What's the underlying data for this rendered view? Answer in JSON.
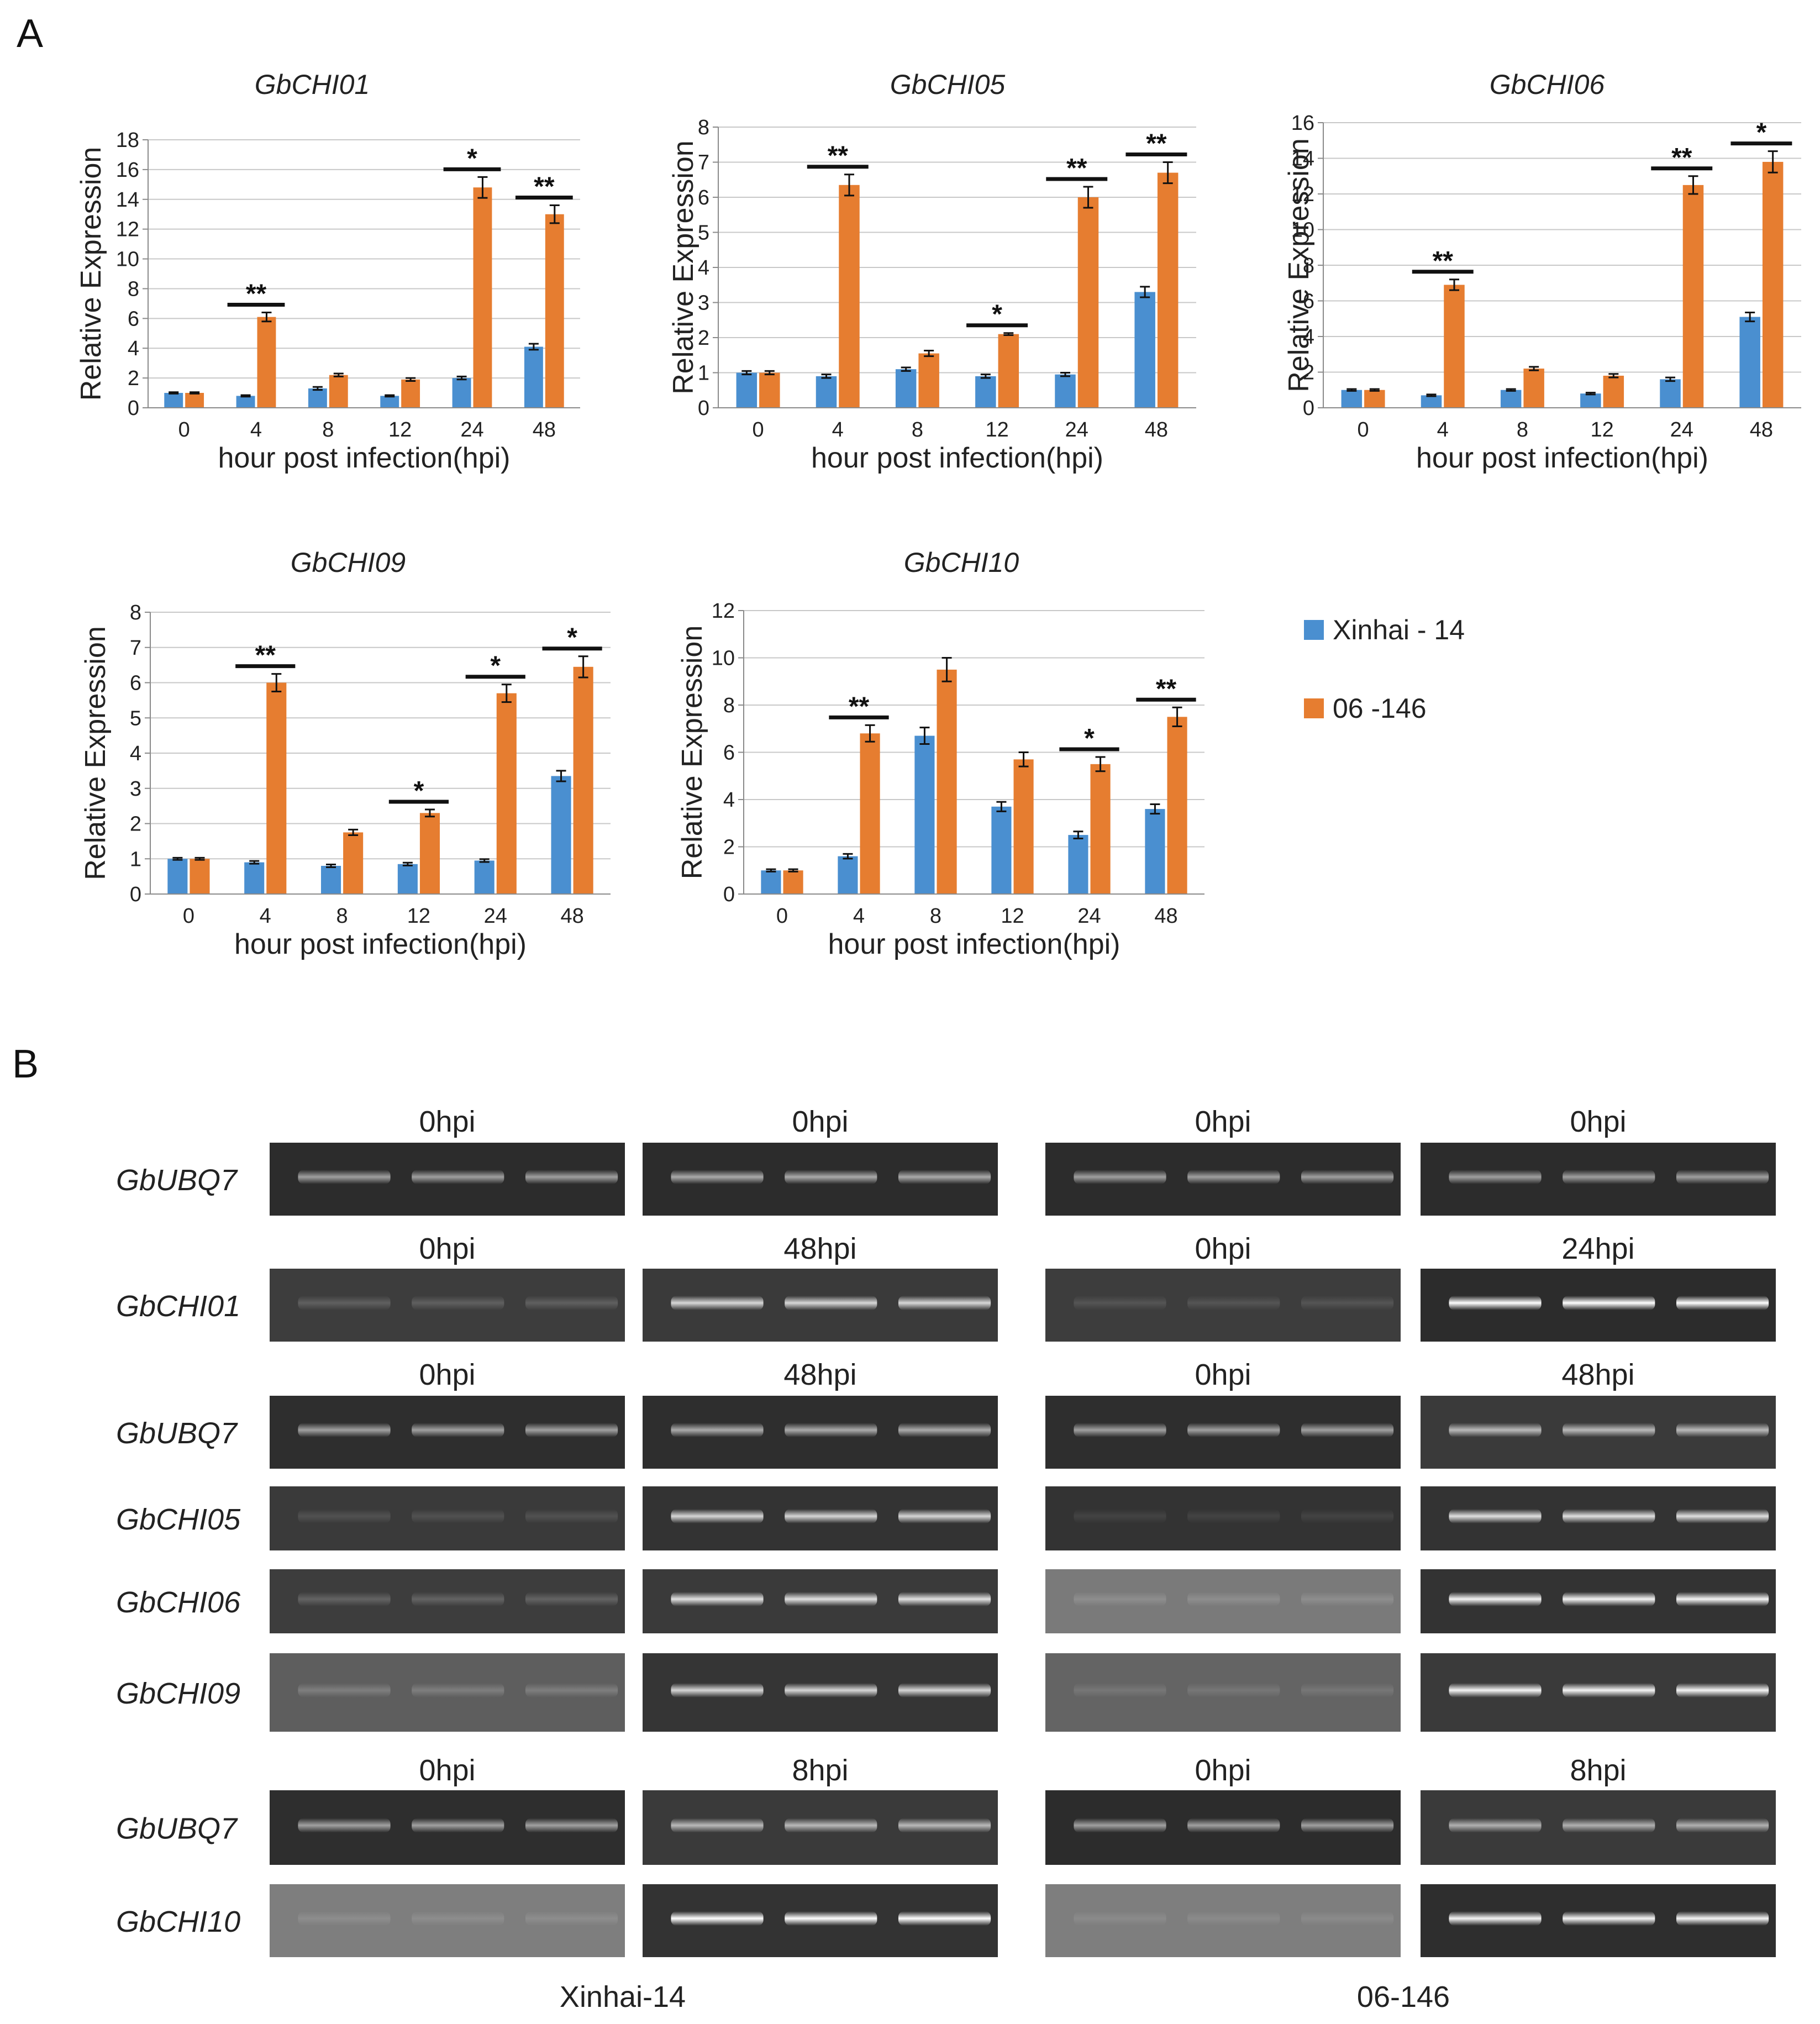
{
  "panel_a_label": "A",
  "panel_b_label": "B",
  "colors": {
    "xinhai": "#4a8fd0",
    "line06": "#e67d30"
  },
  "legend": [
    {
      "label": "Xinhai - 14",
      "color": "#4a8fd0"
    },
    {
      "label": "06 -146",
      "color": "#e67d30"
    }
  ],
  "chart_data": [
    {
      "type": "bar",
      "title": "GbCHI01",
      "xlabel": "hour post infection(hpi)",
      "ylabel": "Relative  Expression",
      "categories": [
        "0",
        "4",
        "8",
        "12",
        "24",
        "48"
      ],
      "ylim": [
        0,
        18
      ],
      "yticks": [
        0,
        2,
        4,
        6,
        8,
        10,
        12,
        14,
        16,
        18
      ],
      "series": [
        {
          "name": "Xinhai - 14",
          "values": [
            1.0,
            0.8,
            1.3,
            0.8,
            2.0,
            4.1
          ],
          "errors": [
            0.05,
            0.05,
            0.1,
            0.05,
            0.1,
            0.2
          ]
        },
        {
          "name": "06 -146",
          "values": [
            1.0,
            6.1,
            2.2,
            1.9,
            14.8,
            13.0
          ],
          "errors": [
            0.05,
            0.3,
            0.1,
            0.1,
            0.7,
            0.6
          ]
        }
      ],
      "significance": [
        "",
        "**",
        "",
        "",
        "*",
        "**"
      ]
    },
    {
      "type": "bar",
      "title": "GbCHI05",
      "xlabel": "hour post infection(hpi)",
      "ylabel": "Relative  Expression",
      "categories": [
        "0",
        "4",
        "8",
        "12",
        "24",
        "48"
      ],
      "ylim": [
        0,
        8
      ],
      "yticks": [
        0,
        1,
        2,
        3,
        4,
        5,
        6,
        7,
        8
      ],
      "series": [
        {
          "name": "Xinhai - 14",
          "values": [
            1.0,
            0.9,
            1.1,
            0.9,
            0.95,
            3.3
          ],
          "errors": [
            0.05,
            0.05,
            0.05,
            0.05,
            0.05,
            0.15
          ]
        },
        {
          "name": "06 -146",
          "values": [
            1.0,
            6.35,
            1.55,
            2.1,
            6.0,
            6.7
          ],
          "errors": [
            0.05,
            0.3,
            0.08,
            0.03,
            0.3,
            0.3
          ]
        }
      ],
      "significance": [
        "",
        "**",
        "",
        "*",
        "**",
        "**"
      ]
    },
    {
      "type": "bar",
      "title": "GbCHI06",
      "xlabel": "hour post infection(hpi)",
      "ylabel": "Relative  Expression",
      "categories": [
        "0",
        "4",
        "8",
        "12",
        "24",
        "48"
      ],
      "ylim": [
        0,
        16
      ],
      "yticks": [
        0,
        2,
        4,
        6,
        8,
        10,
        12,
        14,
        16
      ],
      "series": [
        {
          "name": "Xinhai - 14",
          "values": [
            1.0,
            0.7,
            1.0,
            0.8,
            1.6,
            5.1
          ],
          "errors": [
            0.05,
            0.05,
            0.05,
            0.05,
            0.1,
            0.25
          ]
        },
        {
          "name": "06 -146",
          "values": [
            1.0,
            6.9,
            2.2,
            1.8,
            12.5,
            13.8
          ],
          "errors": [
            0.05,
            0.3,
            0.1,
            0.1,
            0.5,
            0.6
          ]
        }
      ],
      "significance": [
        "",
        "**",
        "",
        "",
        "**",
        "*"
      ]
    },
    {
      "type": "bar",
      "title": "GbCHI09",
      "xlabel": "hour post infection(hpi)",
      "ylabel": "Relative  Expression",
      "categories": [
        "0",
        "4",
        "8",
        "12",
        "24",
        "48"
      ],
      "ylim": [
        0,
        8
      ],
      "yticks": [
        0,
        1,
        2,
        3,
        4,
        5,
        6,
        7,
        8
      ],
      "series": [
        {
          "name": "Xinhai - 14",
          "values": [
            1.0,
            0.9,
            0.8,
            0.85,
            0.95,
            3.35
          ],
          "errors": [
            0.03,
            0.04,
            0.04,
            0.04,
            0.04,
            0.15
          ]
        },
        {
          "name": "06 -146",
          "values": [
            1.0,
            6.0,
            1.75,
            2.3,
            5.7,
            6.45
          ],
          "errors": [
            0.03,
            0.25,
            0.08,
            0.1,
            0.25,
            0.3
          ]
        }
      ],
      "significance": [
        "",
        "**",
        "",
        "*",
        "*",
        "*"
      ]
    },
    {
      "type": "bar",
      "title": "GbCHI10",
      "xlabel": "hour post infection(hpi)",
      "ylabel": "Relative  Expression",
      "categories": [
        "0",
        "4",
        "8",
        "12",
        "24",
        "48"
      ],
      "ylim": [
        0,
        12
      ],
      "yticks": [
        0,
        2,
        4,
        6,
        8,
        10,
        12
      ],
      "series": [
        {
          "name": "Xinhai - 14",
          "values": [
            1.0,
            1.6,
            6.7,
            3.7,
            2.5,
            3.6
          ],
          "errors": [
            0.05,
            0.1,
            0.35,
            0.2,
            0.15,
            0.2
          ]
        },
        {
          "name": "06 -146",
          "values": [
            1.0,
            6.8,
            9.5,
            5.7,
            5.5,
            7.5
          ],
          "errors": [
            0.05,
            0.35,
            0.5,
            0.3,
            0.3,
            0.4
          ]
        }
      ],
      "significance": [
        "",
        "**",
        "",
        "",
        "*",
        "**"
      ]
    }
  ],
  "gel": {
    "groups": [
      {
        "headers": [
          "0hpi",
          "0hpi",
          "0hpi",
          "0hpi"
        ],
        "rows": [
          {
            "gene": "GbUBQ7",
            "bg": [
              "#2c2c2c",
              "#2c2c2c",
              "#2c2c2c",
              "#2c2c2c"
            ],
            "band": [
              0.55,
              0.6,
              0.55,
              0.55
            ]
          }
        ]
      },
      {
        "headers": [
          "0hpi",
          "48hpi",
          "0hpi",
          "24hpi"
        ],
        "rows": [
          {
            "gene": "GbCHI01",
            "bg": [
              "#3d3d3d",
              "#3a3a3a",
              "#3d3d3d",
              "#2c2c2c"
            ],
            "band": [
              0.18,
              0.8,
              0.12,
              1.0
            ]
          }
        ]
      },
      {
        "headers": [
          "0hpi",
          "48hpi",
          "0hpi",
          "48hpi"
        ],
        "rows": [
          {
            "gene": "GbUBQ7",
            "bg": [
              "#2e2e2e",
              "#2e2e2e",
              "#2e2e2e",
              "#3a3a3a"
            ],
            "band": [
              0.55,
              0.6,
              0.55,
              0.65
            ]
          },
          {
            "gene": "GbCHI05",
            "bg": [
              "#3a3a3a",
              "#333333",
              "#333333",
              "#333333"
            ],
            "band": [
              0.12,
              0.8,
              0.08,
              0.85
            ]
          },
          {
            "gene": "GbCHI06",
            "bg": [
              "#3d3d3d",
              "#3a3a3a",
              "#7a7a7a",
              "#333333"
            ],
            "band": [
              0.2,
              0.85,
              0.15,
              0.95
            ]
          },
          {
            "gene": "GbCHI09",
            "bg": [
              "#5e5e5e",
              "#353535",
              "#646464",
              "#3a3a3a"
            ],
            "band": [
              0.2,
              0.8,
              0.12,
              0.95
            ]
          }
        ]
      },
      {
        "headers": [
          "0hpi",
          "8hpi",
          "0hpi",
          "8hpi"
        ],
        "rows": [
          {
            "gene": "GbUBQ7",
            "bg": [
              "#2e2e2e",
              "#3a3a3a",
              "#2c2c2c",
              "#3a3a3a"
            ],
            "band": [
              0.55,
              0.65,
              0.55,
              0.6
            ]
          },
          {
            "gene": "GbCHI10",
            "bg": [
              "#7e7e7e",
              "#333333",
              "#7e7e7e",
              "#2e2e2e"
            ],
            "band": [
              0.12,
              1.0,
              0.1,
              0.95
            ]
          }
        ]
      }
    ],
    "cultivars": [
      "Xinhai-14",
      "06-146"
    ]
  }
}
